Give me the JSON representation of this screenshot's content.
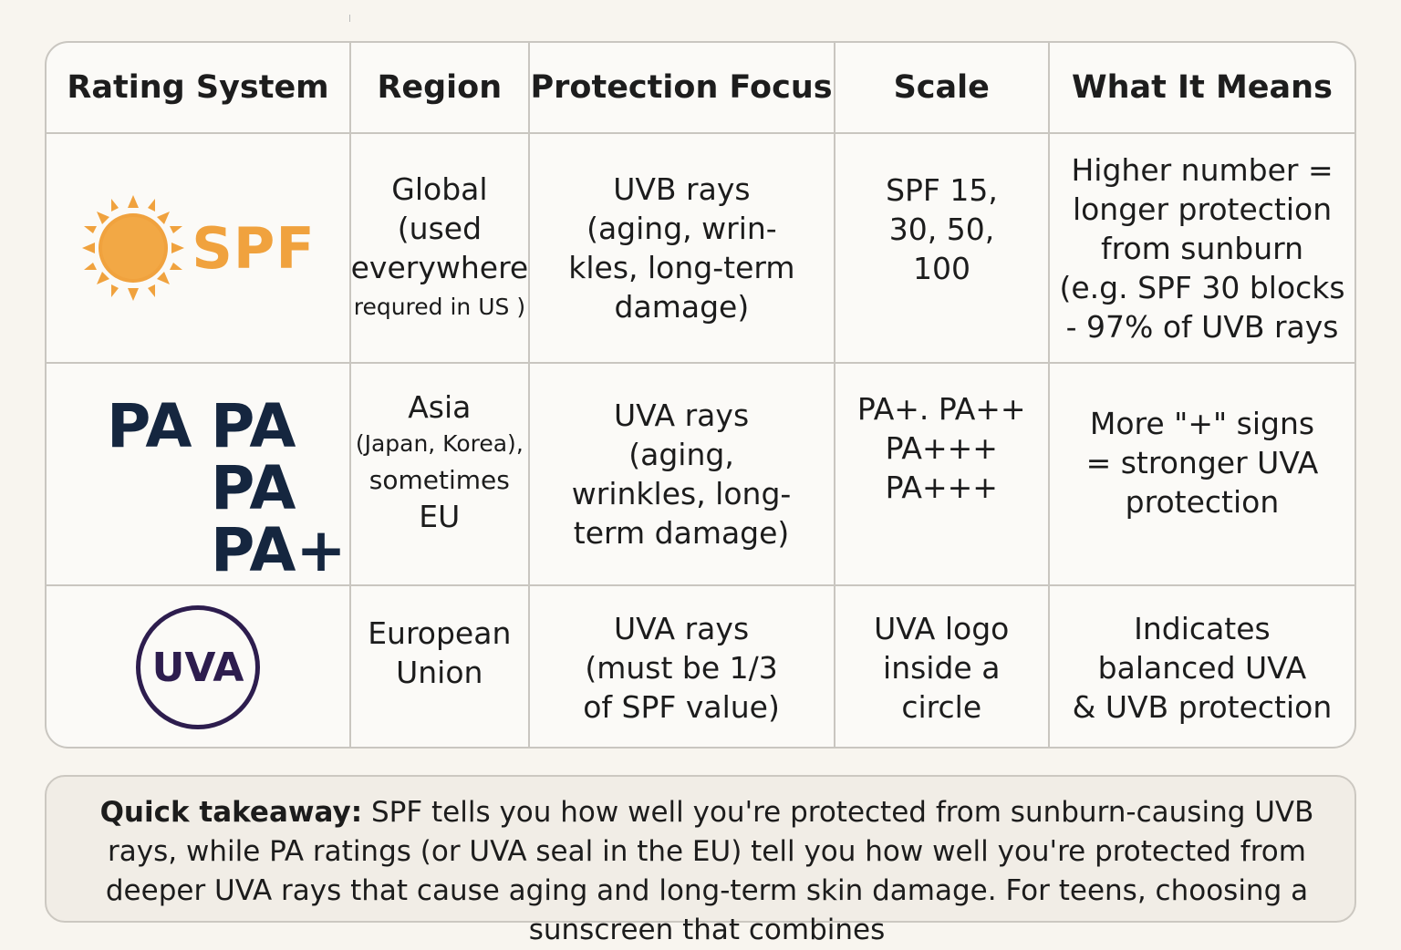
{
  "header": {
    "rating_system": "Rating System",
    "region": "Region",
    "protection_focus": "Protection Focus",
    "scale": "Scale",
    "what_it_means": "What It Means"
  },
  "rows": [
    {
      "logo_text": "SPF",
      "logo_icon": "sun-icon",
      "region_lines": [
        "Global",
        "(used",
        "everywhere"
      ],
      "region_small": "requred in US )",
      "focus_lines": [
        "UVB rays",
        "(aging, wrin-",
        "kles, long-term",
        "damage)"
      ],
      "scale_lines": [
        "SPF 15,",
        "30, 50,",
        "100"
      ],
      "meaning_lines": [
        "Higher number =",
        "longer protection",
        "from sunburn",
        "(e.g. SPF 30 blocks",
        "- 97% of UVB rays"
      ]
    },
    {
      "logo_text": [
        "PA",
        "PA",
        "PA",
        "PA+"
      ],
      "region_lines": [
        "Asia",
        "(Japan, Korea),",
        "sometimes",
        "EU"
      ],
      "focus_lines": [
        "UVA rays",
        "(aging,",
        "wrinkles, long-",
        "term damage)"
      ],
      "scale_lines": [
        "PA+. PA++",
        "PA+++",
        "PA+++"
      ],
      "meaning_lines": [
        "More \"+\" signs",
        "= stronger UVA",
        "protection"
      ]
    },
    {
      "logo_text": "UVA",
      "region_lines": [
        "European",
        "Union"
      ],
      "focus_lines": [
        "UVA rays",
        "(must be 1/3",
        "of SPF value)"
      ],
      "scale_lines": [
        "UVA logo",
        "inside a",
        "circle"
      ],
      "meaning_lines": [
        "Indicates",
        "balanced UVA",
        "& UVB protection"
      ]
    }
  ],
  "takeaway": {
    "label": "Quick takeaway:",
    "text": " SPF tells you how well you're protected from sunburn-causing UVB rays, while PA ratings (or UVA seal in the EU) tell you how well you're protected from deeper UVA rays that cause aging and long-term skin damage. For teens, choosing a sunscreen that combines"
  },
  "colors": {
    "spf_orange": "#f0a23e",
    "pa_navy": "#15263f",
    "uva_purple": "#2d1d4e",
    "border": "#c9c6c0"
  }
}
